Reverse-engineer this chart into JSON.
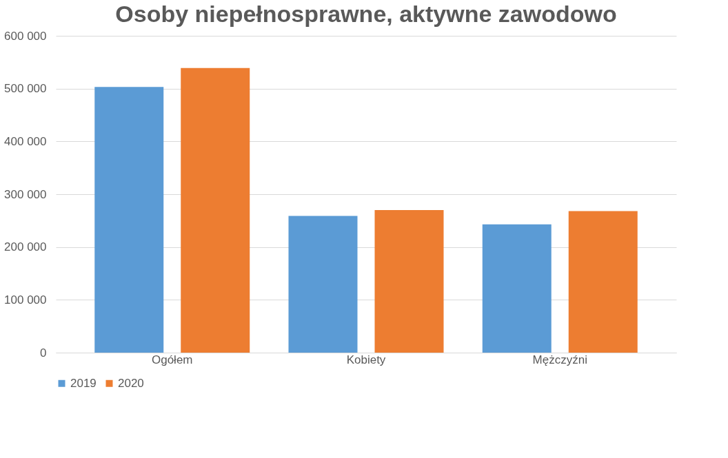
{
  "chart_data": {
    "type": "bar",
    "title": "Osoby niepełnosprawne, aktywne zawodowo",
    "categories": [
      "Ogółem",
      "Kobiety",
      "Mężczyźni"
    ],
    "series": [
      {
        "name": "2019",
        "color": "#5b9bd5",
        "values": [
          503000,
          259000,
          243000
        ]
      },
      {
        "name": "2020",
        "color": "#ed7d31",
        "values": [
          539000,
          270000,
          268000
        ]
      }
    ],
    "ylim": [
      0,
      600000
    ],
    "yticks": [
      0,
      {
        "value": 100000,
        "label": "100 000"
      },
      {
        "value": 200000,
        "label": "200 000"
      },
      {
        "value": 300000,
        "label": "300 000"
      },
      {
        "value": 400000,
        "label": "400 000"
      },
      {
        "value": 500000,
        "label": "500 000"
      },
      {
        "value": 600000,
        "label": "600 000"
      }
    ],
    "grid": "y",
    "legend": "bottom"
  }
}
